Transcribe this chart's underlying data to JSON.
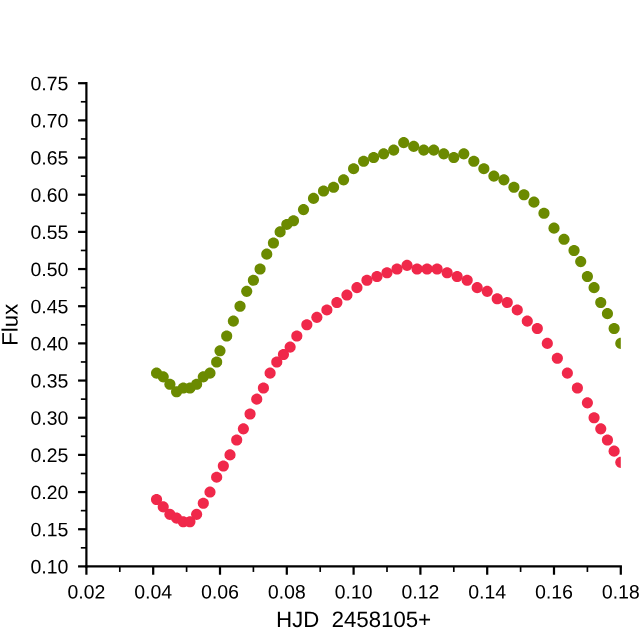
{
  "chart_data": {
    "type": "scatter",
    "xlabel": "HJD  2458105+",
    "ylabel": "Flux",
    "xlim": [
      0.02,
      0.18
    ],
    "xticks": [
      {
        "value": 0.02,
        "label": "0.02"
      },
      {
        "value": 0.04,
        "label": "0.04"
      },
      {
        "value": 0.06,
        "label": "0.06"
      },
      {
        "value": 0.08,
        "label": "0.08"
      },
      {
        "value": 0.1,
        "label": "0.10"
      },
      {
        "value": 0.12,
        "label": "0.12"
      },
      {
        "value": 0.14,
        "label": "0.14"
      },
      {
        "value": 0.16,
        "label": "0.16"
      },
      {
        "value": 0.18,
        "label": "0.18"
      }
    ],
    "ylim": [
      0.1,
      0.75
    ],
    "yticks": [
      {
        "value": 0.1,
        "label": "0.10"
      },
      {
        "value": 0.15,
        "label": "0.15"
      },
      {
        "value": 0.2,
        "label": "0.20"
      },
      {
        "value": 0.25,
        "label": "0.25"
      },
      {
        "value": 0.3,
        "label": "0.30"
      },
      {
        "value": 0.35,
        "label": "0.35"
      },
      {
        "value": 0.4,
        "label": "0.40"
      },
      {
        "value": 0.45,
        "label": "0.45"
      },
      {
        "value": 0.5,
        "label": "0.50"
      },
      {
        "value": 0.55,
        "label": "0.55"
      },
      {
        "value": 0.6,
        "label": "0.60"
      },
      {
        "value": 0.65,
        "label": "0.65"
      },
      {
        "value": 0.7,
        "label": "0.70"
      },
      {
        "value": 0.75,
        "label": "0.75"
      }
    ],
    "marker": "circle",
    "grid": false,
    "legend": false,
    "series": [
      {
        "color": "#6b8a00",
        "x": [
          0.041,
          0.043,
          0.045,
          0.047,
          0.049,
          0.051,
          0.053,
          0.055,
          0.057,
          0.059,
          0.06,
          0.062,
          0.064,
          0.066,
          0.068,
          0.07,
          0.072,
          0.074,
          0.076,
          0.078,
          0.08,
          0.082,
          0.085,
          0.088,
          0.091,
          0.094,
          0.097,
          0.1,
          0.103,
          0.106,
          0.109,
          0.112,
          0.115,
          0.118,
          0.121,
          0.124,
          0.127,
          0.13,
          0.133,
          0.136,
          0.139,
          0.142,
          0.145,
          0.148,
          0.151,
          0.154,
          0.157,
          0.16,
          0.163,
          0.166,
          0.168,
          0.17,
          0.172,
          0.174,
          0.176,
          0.178,
          0.18
        ],
        "values": [
          0.36,
          0.355,
          0.345,
          0.335,
          0.34,
          0.34,
          0.345,
          0.355,
          0.36,
          0.375,
          0.39,
          0.41,
          0.43,
          0.45,
          0.47,
          0.485,
          0.5,
          0.52,
          0.535,
          0.55,
          0.56,
          0.565,
          0.58,
          0.595,
          0.605,
          0.61,
          0.62,
          0.635,
          0.645,
          0.65,
          0.655,
          0.66,
          0.67,
          0.665,
          0.66,
          0.66,
          0.655,
          0.65,
          0.655,
          0.645,
          0.635,
          0.625,
          0.62,
          0.61,
          0.6,
          0.59,
          0.575,
          0.555,
          0.54,
          0.525,
          0.51,
          0.49,
          0.475,
          0.455,
          0.44,
          0.42,
          0.4
        ]
      },
      {
        "color": "#f0284a",
        "x": [
          0.041,
          0.043,
          0.045,
          0.047,
          0.049,
          0.051,
          0.053,
          0.055,
          0.057,
          0.059,
          0.061,
          0.063,
          0.065,
          0.067,
          0.069,
          0.071,
          0.073,
          0.075,
          0.077,
          0.079,
          0.081,
          0.083,
          0.086,
          0.089,
          0.092,
          0.095,
          0.098,
          0.101,
          0.104,
          0.107,
          0.11,
          0.113,
          0.116,
          0.119,
          0.122,
          0.125,
          0.128,
          0.131,
          0.134,
          0.137,
          0.14,
          0.143,
          0.146,
          0.149,
          0.152,
          0.155,
          0.158,
          0.161,
          0.164,
          0.167,
          0.17,
          0.172,
          0.174,
          0.176,
          0.178,
          0.18
        ],
        "values": [
          0.19,
          0.18,
          0.17,
          0.165,
          0.16,
          0.16,
          0.17,
          0.185,
          0.2,
          0.22,
          0.235,
          0.25,
          0.27,
          0.285,
          0.305,
          0.325,
          0.34,
          0.36,
          0.375,
          0.385,
          0.395,
          0.41,
          0.425,
          0.435,
          0.445,
          0.455,
          0.465,
          0.475,
          0.485,
          0.49,
          0.495,
          0.5,
          0.505,
          0.5,
          0.5,
          0.5,
          0.495,
          0.49,
          0.485,
          0.475,
          0.47,
          0.46,
          0.455,
          0.445,
          0.43,
          0.42,
          0.4,
          0.38,
          0.36,
          0.34,
          0.32,
          0.3,
          0.285,
          0.27,
          0.255,
          0.24
        ]
      }
    ]
  }
}
